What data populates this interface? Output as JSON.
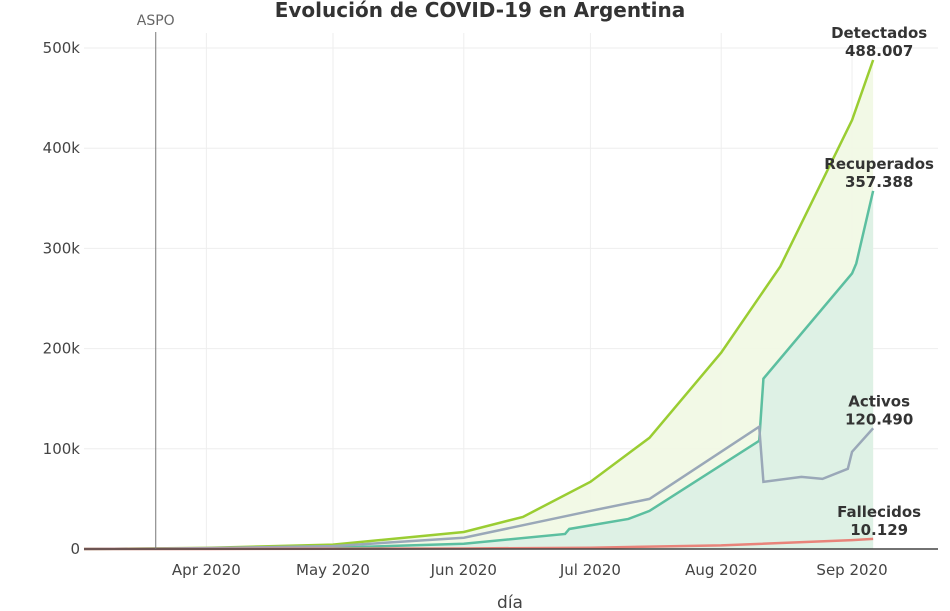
{
  "chart_data": {
    "type": "area",
    "title": "Evolución de COVID-19 en Argentina",
    "xlabel": "día",
    "ylabel": "",
    "ylim": [
      0,
      500000
    ],
    "xlim": [
      "2020-03-03",
      "2020-09-06"
    ],
    "yticks": [
      0,
      100000,
      200000,
      300000,
      400000,
      500000
    ],
    "ytick_labels": [
      "0",
      "100k",
      "200k",
      "300k",
      "400k",
      "500k"
    ],
    "xticks": [
      "2020-04-01",
      "2020-05-01",
      "2020-06-01",
      "2020-07-01",
      "2020-08-01",
      "2020-09-01"
    ],
    "xtick_labels": [
      "Apr 2020",
      "May 2020",
      "Jun 2020",
      "Jul 2020",
      "Aug 2020",
      "Sep 2020"
    ],
    "grid": true,
    "annotation": {
      "label": "ASPO",
      "x": "2020-03-20"
    },
    "series": [
      {
        "name": "Detectados",
        "end_label": "488.007",
        "color": "#9acd32",
        "fill": "#f1f8e3",
        "x": [
          "2020-03-03",
          "2020-04-01",
          "2020-05-01",
          "2020-06-01",
          "2020-06-15",
          "2020-07-01",
          "2020-07-15",
          "2020-08-01",
          "2020-08-15",
          "2020-09-01",
          "2020-09-06"
        ],
        "y": [
          1,
          1100,
          4400,
          17000,
          32000,
          67000,
          111000,
          196000,
          282000,
          428000,
          488007
        ]
      },
      {
        "name": "Recuperados",
        "end_label": "357.388",
        "color": "#5cbfa0",
        "fill": "#dcefe4",
        "x": [
          "2020-03-03",
          "2020-04-01",
          "2020-05-01",
          "2020-06-01",
          "2020-06-25",
          "2020-06-26",
          "2020-07-10",
          "2020-07-15",
          "2020-08-10",
          "2020-08-11",
          "2020-09-01",
          "2020-09-02",
          "2020-09-06"
        ],
        "y": [
          0,
          200,
          1300,
          5300,
          15000,
          20000,
          30000,
          38000,
          108000,
          170000,
          275000,
          285000,
          357388
        ]
      },
      {
        "name": "Activos",
        "end_label": "120.490",
        "color": "#9aa8b8",
        "fill": "none",
        "x": [
          "2020-03-03",
          "2020-04-01",
          "2020-05-01",
          "2020-06-01",
          "2020-07-01",
          "2020-07-15",
          "2020-08-10",
          "2020-08-11",
          "2020-08-20",
          "2020-08-25",
          "2020-08-31",
          "2020-09-01",
          "2020-09-06"
        ],
        "y": [
          1,
          870,
          2900,
          11200,
          38000,
          50000,
          122000,
          67000,
          72000,
          70000,
          80000,
          97000,
          120490
        ]
      },
      {
        "name": "Fallecidos",
        "end_label": "10.129",
        "color": "#e8837a",
        "fill": "none",
        "x": [
          "2020-03-03",
          "2020-04-01",
          "2020-05-01",
          "2020-06-01",
          "2020-07-01",
          "2020-08-01",
          "2020-09-01",
          "2020-09-06"
        ],
        "y": [
          0,
          30,
          220,
          540,
          1300,
          3600,
          8900,
          10129
        ]
      }
    ]
  }
}
